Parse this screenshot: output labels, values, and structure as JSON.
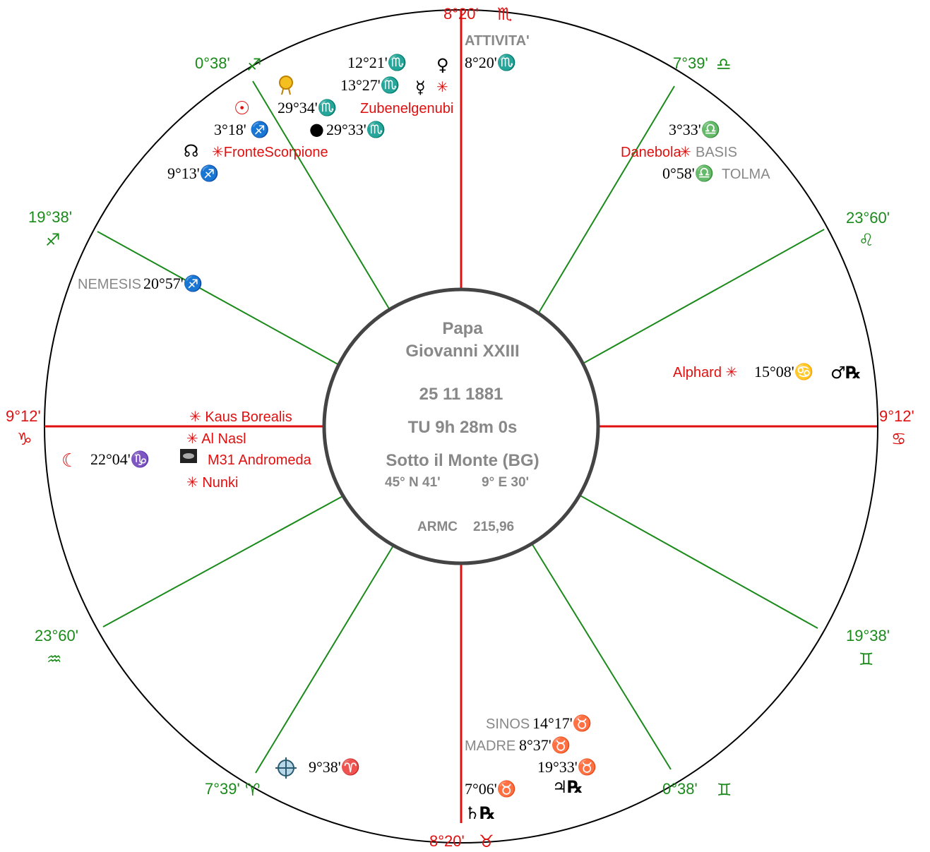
{
  "center": {
    "name_line1": "Papa",
    "name_line2": "Giovanni XXIII",
    "date": "25  11  1881",
    "time": "TU 9h 28m 0s",
    "place": "Sotto il Monte (BG)",
    "lat": "45° N  41'",
    "lon": "9° E  30'",
    "armc_label": "ARMC",
    "armc_value": "215,96"
  },
  "cusps": {
    "mc": {
      "deg": "8°20'",
      "sign": "♏"
    },
    "ic": {
      "deg": "8°20'",
      "sign": "♉"
    },
    "asc_left": {
      "deg": "9°12'",
      "sign": "♑"
    },
    "desc_right": {
      "deg": "9°12'",
      "sign": "♋"
    },
    "c11": {
      "deg": "7°39'",
      "sign": "♎"
    },
    "c12": {
      "deg": "23°60'",
      "sign": "♌"
    },
    "c2_right": {
      "deg": "19°38'",
      "sign": "♊"
    },
    "c3_right": {
      "deg": "0°38'",
      "sign": "♊"
    },
    "c9": {
      "deg": "0°38'",
      "sign": "♐"
    },
    "c8": {
      "deg": "19°38'",
      "sign": "♐"
    },
    "c6": {
      "deg": "23°60'",
      "sign": "♒"
    },
    "c5": {
      "deg": "7°39'",
      "sign": "♈"
    }
  },
  "planets": {
    "venus": {
      "pos": "12°21'♏",
      "glyph": "♀"
    },
    "mercury": {
      "pos": "13°27'♏",
      "glyph": "☿"
    },
    "sun": {
      "pos": "3°18' ♐",
      "glyph": "☉"
    },
    "node": {
      "pos": "9°13'♐",
      "glyph": "☊"
    },
    "moon": {
      "pos": "22°04'♑",
      "glyph": "☾"
    },
    "mars": {
      "pos": "15°08'♋",
      "glyph": "♂℞"
    },
    "jupiter": {
      "pos": "19°33'♉",
      "glyph": "♃℞"
    },
    "saturn": {
      "pos": "7°06'♉",
      "glyph": "♄℞"
    },
    "black_moon": {
      "pos": "29°33'♏",
      "glyph": "●"
    },
    "fortune": {
      "pos": "9°38'♈"
    },
    "prenatal": {
      "pos": "29°34'♏"
    },
    "attivita_pos": "8°20'♏",
    "basis_pos": "3°33'♎",
    "tolma_pos": "0°58'♎",
    "nemesis_pos": "20°57'♐",
    "sinos_pos": "14°17'♉",
    "madre_pos": "8°37'♉"
  },
  "stars": {
    "zubenelgenubi": "Zubenelgenubi",
    "fronte": "✳FronteScorpione",
    "danebola": "Danebola",
    "alphard": "Alphard ✳",
    "kaus": "✳ Kaus Borealis",
    "alnasl": "✳ Al Nasl",
    "m31": "M31 Andromeda",
    "nunki": "✳ Nunki",
    "star_symbol": "✳"
  },
  "points": {
    "attivita": "ATTIVITA'",
    "basis": "BASIS",
    "tolma": "TOLMA",
    "nemesis": "NEMESIS",
    "sinos": "SINOS",
    "madre": "MADRE"
  },
  "colors": {
    "axis": "#e01010",
    "cusp": "#1a8a1a",
    "ring": "#444444"
  }
}
